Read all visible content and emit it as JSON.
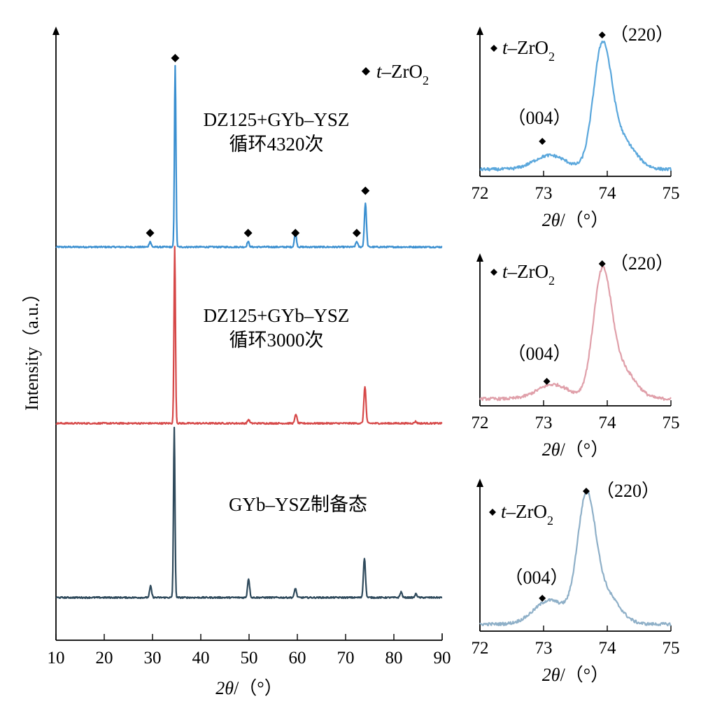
{
  "chart_data": [
    {
      "type": "line",
      "title": "",
      "xlabel": "2θ/（°）",
      "ylabel": "Intensity（a.u.）",
      "xlim": [
        10,
        90
      ],
      "xticks": [
        "10",
        "20",
        "30",
        "40",
        "50",
        "60",
        "70",
        "80",
        "90"
      ],
      "stacked_offset": true,
      "legend": {
        "marker": "◆",
        "label": "t–ZrO2",
        "position": "top-right"
      },
      "series": [
        {
          "name": "DZ125+GYb–YSZ 循环4320次",
          "color": "#3a8fd0",
          "baseline": 0.0,
          "peaks": [
            [
              29.5,
              0.3
            ],
            [
              34.7,
              10.0
            ],
            [
              49.8,
              0.3
            ],
            [
              59.6,
              0.8
            ],
            [
              72.3,
              0.3
            ],
            [
              74.1,
              2.4
            ]
          ],
          "markers_x": [
            29.5,
            34.7,
            49.8,
            59.6,
            72.3,
            74.1
          ]
        },
        {
          "name": "DZ125+GYb–YSZ 循环3000次",
          "color": "#d64848",
          "baseline": 0.0,
          "peaks": [
            [
              34.6,
              9.5
            ],
            [
              49.9,
              0.2
            ],
            [
              59.7,
              0.5
            ],
            [
              74.0,
              2.0
            ],
            [
              84.5,
              0.1
            ]
          ],
          "markers_x": []
        },
        {
          "name": "GYb–YSZ制备态",
          "color": "#2f4a5c",
          "baseline": 0.0,
          "peaks": [
            [
              29.6,
              0.6
            ],
            [
              34.5,
              9.0
            ],
            [
              49.9,
              1.0
            ],
            [
              59.6,
              0.5
            ],
            [
              73.9,
              2.1
            ],
            [
              81.5,
              0.3
            ],
            [
              84.6,
              0.2
            ]
          ],
          "markers_x": []
        }
      ],
      "labels": [
        {
          "line1": "DZ125+GYb–YSZ",
          "line2": "循环4320次"
        },
        {
          "line1": "DZ125+GYb–YSZ",
          "line2": "循环3000次"
        },
        {
          "line1": "GYb–YSZ制备态",
          "line2": ""
        }
      ]
    },
    {
      "type": "line",
      "title": "",
      "xlabel": "2θ/（°）",
      "xlim": [
        72,
        75
      ],
      "xticks": [
        "72",
        "73",
        "74",
        "75"
      ],
      "color": "#5aa7dc",
      "legend": {
        "marker": "◆",
        "label": "t–ZrO2"
      },
      "peak_labels": [
        "（220）",
        "（004）"
      ],
      "peaks": [
        [
          73.1,
          0.12
        ],
        [
          73.92,
          1.0
        ]
      ],
      "marker_x": [
        73.92,
        72.98
      ]
    },
    {
      "type": "line",
      "title": "",
      "xlabel": "2θ/（°）",
      "xlim": [
        72,
        75
      ],
      "xticks": [
        "72",
        "73",
        "74",
        "75"
      ],
      "color": "#e0a0aa",
      "legend": {
        "marker": "◆",
        "label": "t–ZrO2"
      },
      "peak_labels": [
        "（220）",
        "（004）"
      ],
      "peaks": [
        [
          73.15,
          0.12
        ],
        [
          73.92,
          1.0
        ]
      ],
      "marker_x": [
        73.92,
        73.05
      ]
    },
    {
      "type": "line",
      "title": "",
      "xlabel": "2θ/（°）",
      "xlim": [
        72,
        75
      ],
      "xticks": [
        "72",
        "73",
        "74",
        "75"
      ],
      "color": "#8fb0c8",
      "legend": {
        "marker": "◆",
        "label": "t–ZrO2"
      },
      "peak_labels": [
        "（220）",
        "（004）"
      ],
      "peaks": [
        [
          73.1,
          0.2
        ],
        [
          73.67,
          1.0
        ]
      ],
      "marker_x": [
        73.67,
        72.98
      ]
    }
  ]
}
